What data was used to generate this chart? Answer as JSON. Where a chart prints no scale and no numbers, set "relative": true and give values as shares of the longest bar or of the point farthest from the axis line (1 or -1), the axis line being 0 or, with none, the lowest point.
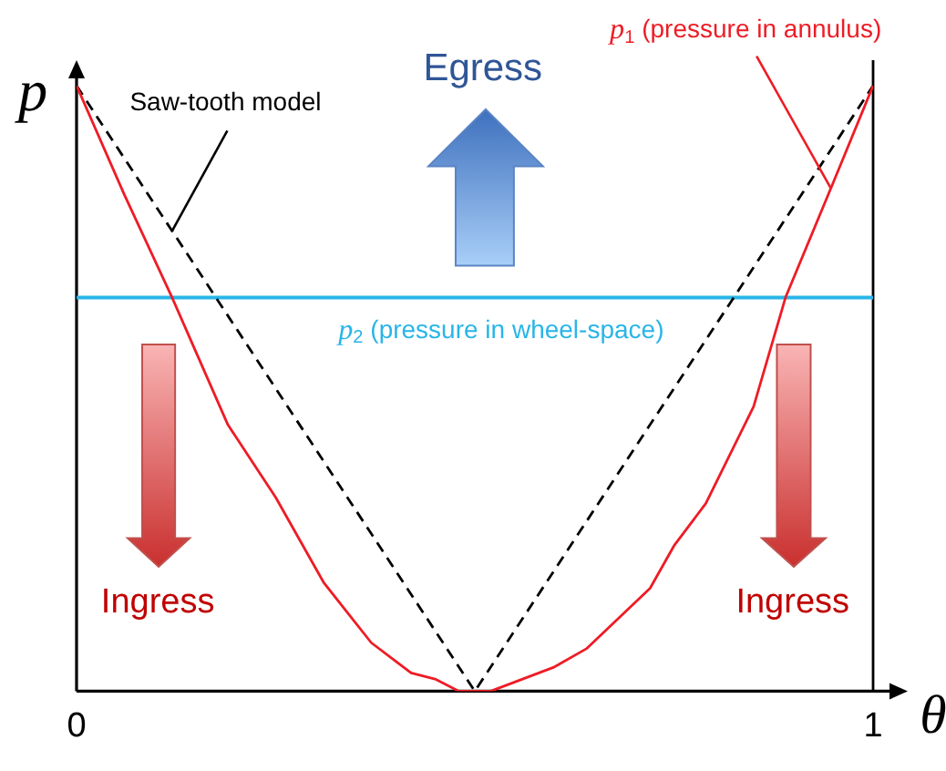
{
  "chart_data": {
    "type": "line",
    "xlabel": "θ",
    "ylabel": "p",
    "relative": true,
    "xlim": [
      0,
      1
    ],
    "xticks": [
      0,
      1
    ],
    "series": [
      {
        "name": "p$_{1}$ (pressure in annulus)",
        "color": "#ee1c25",
        "x": [
          0,
          0.06,
          0.12,
          0.19,
          0.25,
          0.31,
          0.34,
          0.37,
          0.4,
          0.42,
          0.45,
          0.48,
          0.52,
          0.56,
          0.6,
          0.64,
          0.68,
          0.72,
          0.75,
          0.79,
          0.85,
          0.89,
          0.95,
          1
        ],
        "values": [
          1,
          0.82,
          0.65,
          0.44,
          0.32,
          0.18,
          0.13,
          0.08,
          0.05,
          0.03,
          0.02,
          0,
          0,
          0.02,
          0.04,
          0.07,
          0.12,
          0.17,
          0.24,
          0.31,
          0.47,
          0.65,
          0.84,
          1
        ]
      },
      {
        "name": "Saw-tooth model",
        "color": "#000000",
        "line_style": "dashed",
        "x": [
          0,
          0.5,
          1
        ],
        "values": [
          1,
          0,
          1
        ]
      },
      {
        "name": "p$_{2}$ (pressure in wheel-space)",
        "color": "#29b5e8",
        "x": [
          0,
          1
        ],
        "values": [
          0.65,
          0.65
        ]
      }
    ],
    "ref_lines": [
      {
        "axis": "x",
        "value": 1,
        "color": "#000000"
      }
    ],
    "annotations": [
      "Egress",
      "Ingress",
      "Ingress"
    ]
  }
}
